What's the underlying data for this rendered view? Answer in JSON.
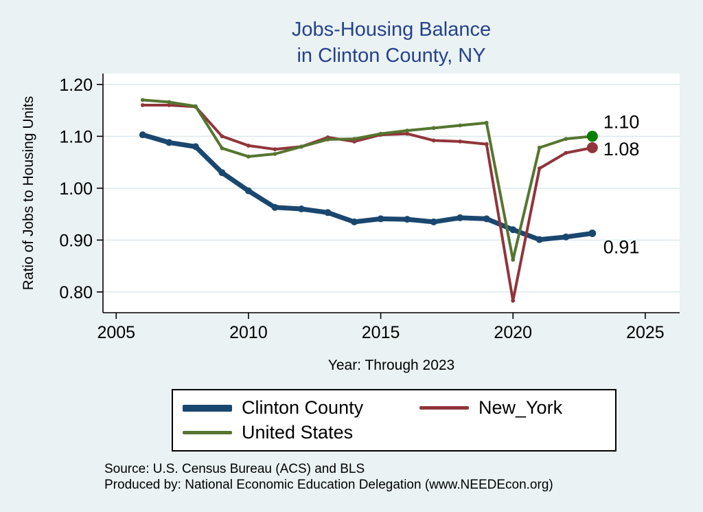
{
  "title": {
    "line1": "Jobs-Housing Balance",
    "line2": "in Clinton County, NY"
  },
  "axes": {
    "ylabel": "Ratio of Jobs to Housing Units",
    "xlabel": "Year: Through 2023"
  },
  "chart_data": {
    "type": "line",
    "title": "Jobs-Housing Balance in Clinton County, NY",
    "x": [
      2006,
      2007,
      2008,
      2009,
      2010,
      2011,
      2012,
      2013,
      2014,
      2015,
      2016,
      2017,
      2018,
      2019,
      2020,
      2021,
      2022,
      2023
    ],
    "series": [
      {
        "name": "Clinton County",
        "color": "#1a476f",
        "width": 7,
        "marker_color": "#1a476f",
        "end_label": "0.91",
        "values": [
          1.103,
          1.088,
          1.08,
          1.03,
          0.995,
          0.963,
          0.96,
          0.953,
          0.935,
          0.941,
          0.94,
          0.935,
          0.943,
          0.941,
          0.92,
          0.901,
          0.906,
          0.913
        ]
      },
      {
        "name": "New_York",
        "color": "#90353b",
        "width": 4,
        "marker_color": "#90353b",
        "end_label": "1.08",
        "values": [
          1.16,
          1.16,
          1.157,
          1.1,
          1.082,
          1.075,
          1.08,
          1.098,
          1.09,
          1.103,
          1.105,
          1.092,
          1.09,
          1.085,
          0.783,
          1.038,
          1.068,
          1.078
        ]
      },
      {
        "name": "United States",
        "color": "#55752f",
        "width": 4,
        "marker_color": "#008000",
        "end_label": "1.10",
        "values": [
          1.17,
          1.166,
          1.158,
          1.077,
          1.061,
          1.066,
          1.08,
          1.094,
          1.095,
          1.105,
          1.111,
          1.116,
          1.121,
          1.126,
          0.862,
          1.078,
          1.095,
          1.1
        ]
      }
    ],
    "xticks": [
      2005,
      2010,
      2015,
      2020,
      2025
    ],
    "yticks": [
      "0.80",
      "0.90",
      "1.00",
      "1.10",
      "1.20"
    ],
    "xlim": [
      2004.5,
      2026.3
    ],
    "ylim": [
      0.76,
      1.221
    ],
    "grid": true,
    "legend_position": "bottom"
  },
  "source": {
    "line1": "Source: U.S. Census Bureau (ACS) and BLS",
    "line2": "Produced by: National Economic Education Delegation (www.NEEDEcon.org)"
  },
  "colors": {
    "background": "#eaf2f3",
    "plot_bg": "#ffffff",
    "grid": "#dce9ec",
    "axis": "#000000",
    "title": "#26428b",
    "clinton_county": "#1a476f",
    "new_york": "#90353b",
    "united_states": "#55752f",
    "us_end_marker": "#008000"
  }
}
